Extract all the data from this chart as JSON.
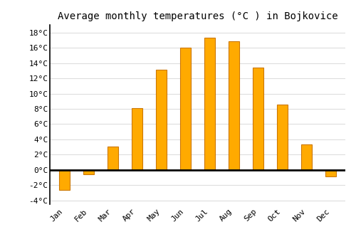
{
  "title": "Average monthly temperatures (°C ) in Bojkovice",
  "months": [
    "Jan",
    "Feb",
    "Mar",
    "Apr",
    "May",
    "Jun",
    "Jul",
    "Aug",
    "Sep",
    "Oct",
    "Nov",
    "Dec"
  ],
  "values": [
    -2.6,
    -0.6,
    3.1,
    8.1,
    13.1,
    16.0,
    17.3,
    16.9,
    13.4,
    8.6,
    3.3,
    -0.9
  ],
  "bar_color": "#FFAA00",
  "bar_edge_color": "#CC7700",
  "background_color": "#ffffff",
  "grid_color": "#dddddd",
  "ylim": [
    -4.5,
    19
  ],
  "yticks": [
    -4,
    -2,
    0,
    2,
    4,
    6,
    8,
    10,
    12,
    14,
    16,
    18
  ],
  "zero_line_color": "#000000",
  "title_fontsize": 10,
  "tick_fontsize": 8,
  "bar_width": 0.45,
  "left_spine_color": "#000000"
}
